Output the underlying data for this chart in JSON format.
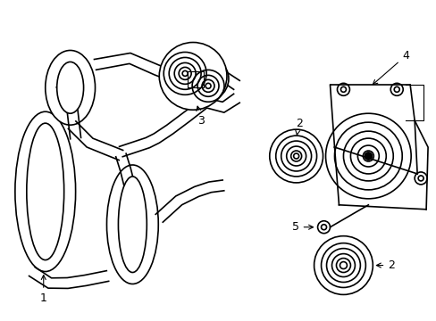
{
  "bg_color": "#ffffff",
  "line_color": "#000000",
  "lw": 1.1,
  "figsize": [
    4.89,
    3.6
  ],
  "dpi": 100,
  "belt_thickness": 0.013,
  "label_fs": 9
}
